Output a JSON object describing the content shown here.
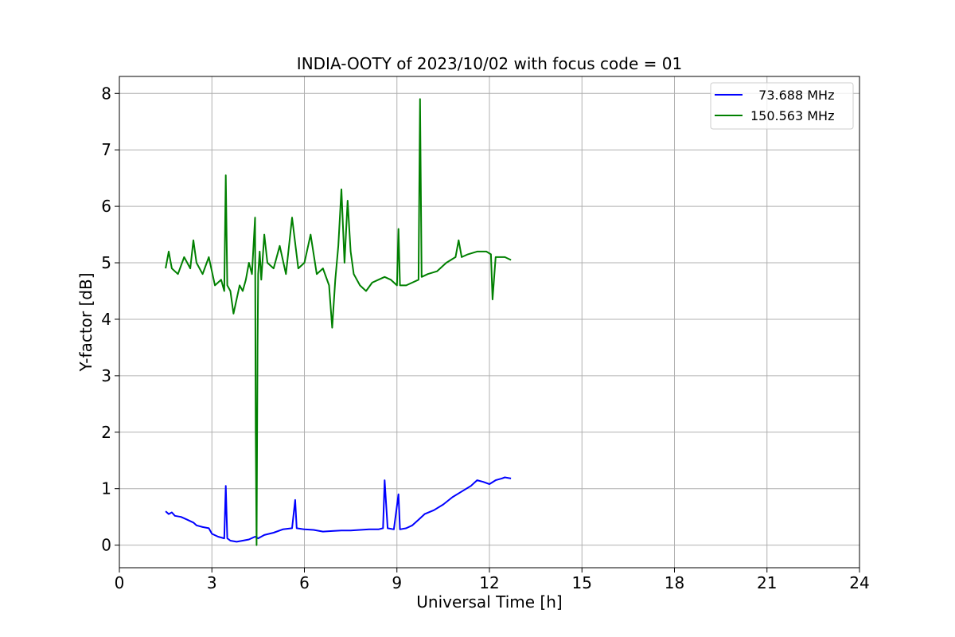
{
  "chart_data": {
    "type": "line",
    "title": "INDIA-OOTY of 2023/10/02 with focus code = 01",
    "xlabel": "Universal Time [h]",
    "ylabel": "Y-factor [dB]",
    "xlim": [
      0,
      24
    ],
    "ylim": [
      -0.4,
      8.3
    ],
    "xticks": [
      0,
      3,
      6,
      9,
      12,
      15,
      18,
      21,
      24
    ],
    "yticks": [
      0,
      1,
      2,
      3,
      4,
      5,
      6,
      7,
      8
    ],
    "grid": true,
    "legend_position": "top-right",
    "series": [
      {
        "name": "  73.688 MHz",
        "color": "#0000ff",
        "x": [
          1.5,
          1.6,
          1.7,
          1.8,
          2.0,
          2.2,
          2.4,
          2.5,
          2.7,
          2.9,
          3.0,
          3.2,
          3.4,
          3.45,
          3.5,
          3.6,
          3.8,
          4.0,
          4.2,
          4.4,
          4.5,
          4.7,
          5.0,
          5.3,
          5.6,
          5.7,
          5.75,
          6.0,
          6.3,
          6.6,
          6.9,
          7.2,
          7.5,
          7.8,
          8.1,
          8.4,
          8.55,
          8.6,
          8.7,
          8.9,
          9.05,
          9.1,
          9.3,
          9.5,
          9.7,
          9.9,
          10.2,
          10.5,
          10.8,
          11.1,
          11.4,
          11.6,
          11.8,
          12.0,
          12.2,
          12.4,
          12.5,
          12.7
        ],
        "values": [
          0.6,
          0.55,
          0.58,
          0.52,
          0.5,
          0.45,
          0.4,
          0.35,
          0.32,
          0.3,
          0.2,
          0.15,
          0.12,
          1.05,
          0.12,
          0.08,
          0.06,
          0.08,
          0.1,
          0.15,
          0.12,
          0.18,
          0.22,
          0.28,
          0.3,
          0.8,
          0.3,
          0.28,
          0.27,
          0.24,
          0.25,
          0.26,
          0.26,
          0.27,
          0.28,
          0.28,
          0.3,
          1.15,
          0.3,
          0.28,
          0.9,
          0.28,
          0.3,
          0.35,
          0.45,
          0.55,
          0.62,
          0.72,
          0.85,
          0.95,
          1.05,
          1.15,
          1.12,
          1.08,
          1.15,
          1.18,
          1.2,
          1.18
        ]
      },
      {
        "name": "150.563 MHz",
        "color": "#008000",
        "x": [
          1.5,
          1.6,
          1.7,
          1.9,
          2.1,
          2.3,
          2.4,
          2.5,
          2.7,
          2.9,
          3.1,
          3.3,
          3.4,
          3.45,
          3.5,
          3.6,
          3.7,
          3.9,
          4.0,
          4.1,
          4.2,
          4.3,
          4.4,
          4.42,
          4.45,
          4.48,
          4.5,
          4.55,
          4.6,
          4.7,
          4.8,
          5.0,
          5.2,
          5.4,
          5.6,
          5.8,
          6.0,
          6.2,
          6.4,
          6.6,
          6.8,
          6.9,
          7.0,
          7.1,
          7.2,
          7.3,
          7.4,
          7.5,
          7.6,
          7.8,
          8.0,
          8.2,
          8.4,
          8.6,
          8.8,
          9.0,
          9.05,
          9.1,
          9.3,
          9.5,
          9.7,
          9.75,
          9.8,
          10.0,
          10.3,
          10.6,
          10.9,
          11.0,
          11.1,
          11.3,
          11.6,
          11.9,
          12.05,
          12.1,
          12.2,
          12.5,
          12.7
        ],
        "values": [
          4.9,
          5.2,
          4.9,
          4.8,
          5.1,
          4.9,
          5.4,
          5.0,
          4.8,
          5.1,
          4.6,
          4.7,
          4.5,
          6.55,
          4.6,
          4.5,
          4.1,
          4.6,
          4.5,
          4.7,
          5.0,
          4.8,
          5.8,
          2.05,
          0.0,
          3.5,
          4.8,
          5.2,
          4.7,
          5.5,
          5.0,
          4.9,
          5.3,
          4.8,
          5.8,
          4.9,
          5.0,
          5.5,
          4.8,
          4.9,
          4.6,
          3.85,
          4.7,
          5.3,
          6.3,
          5.0,
          6.1,
          5.2,
          4.8,
          4.6,
          4.5,
          4.65,
          4.7,
          4.75,
          4.7,
          4.6,
          5.6,
          4.6,
          4.6,
          4.65,
          4.7,
          7.9,
          4.75,
          4.8,
          4.85,
          5.0,
          5.1,
          5.4,
          5.1,
          5.15,
          5.2,
          5.2,
          5.15,
          4.35,
          5.1,
          5.1,
          5.05
        ]
      }
    ]
  }
}
